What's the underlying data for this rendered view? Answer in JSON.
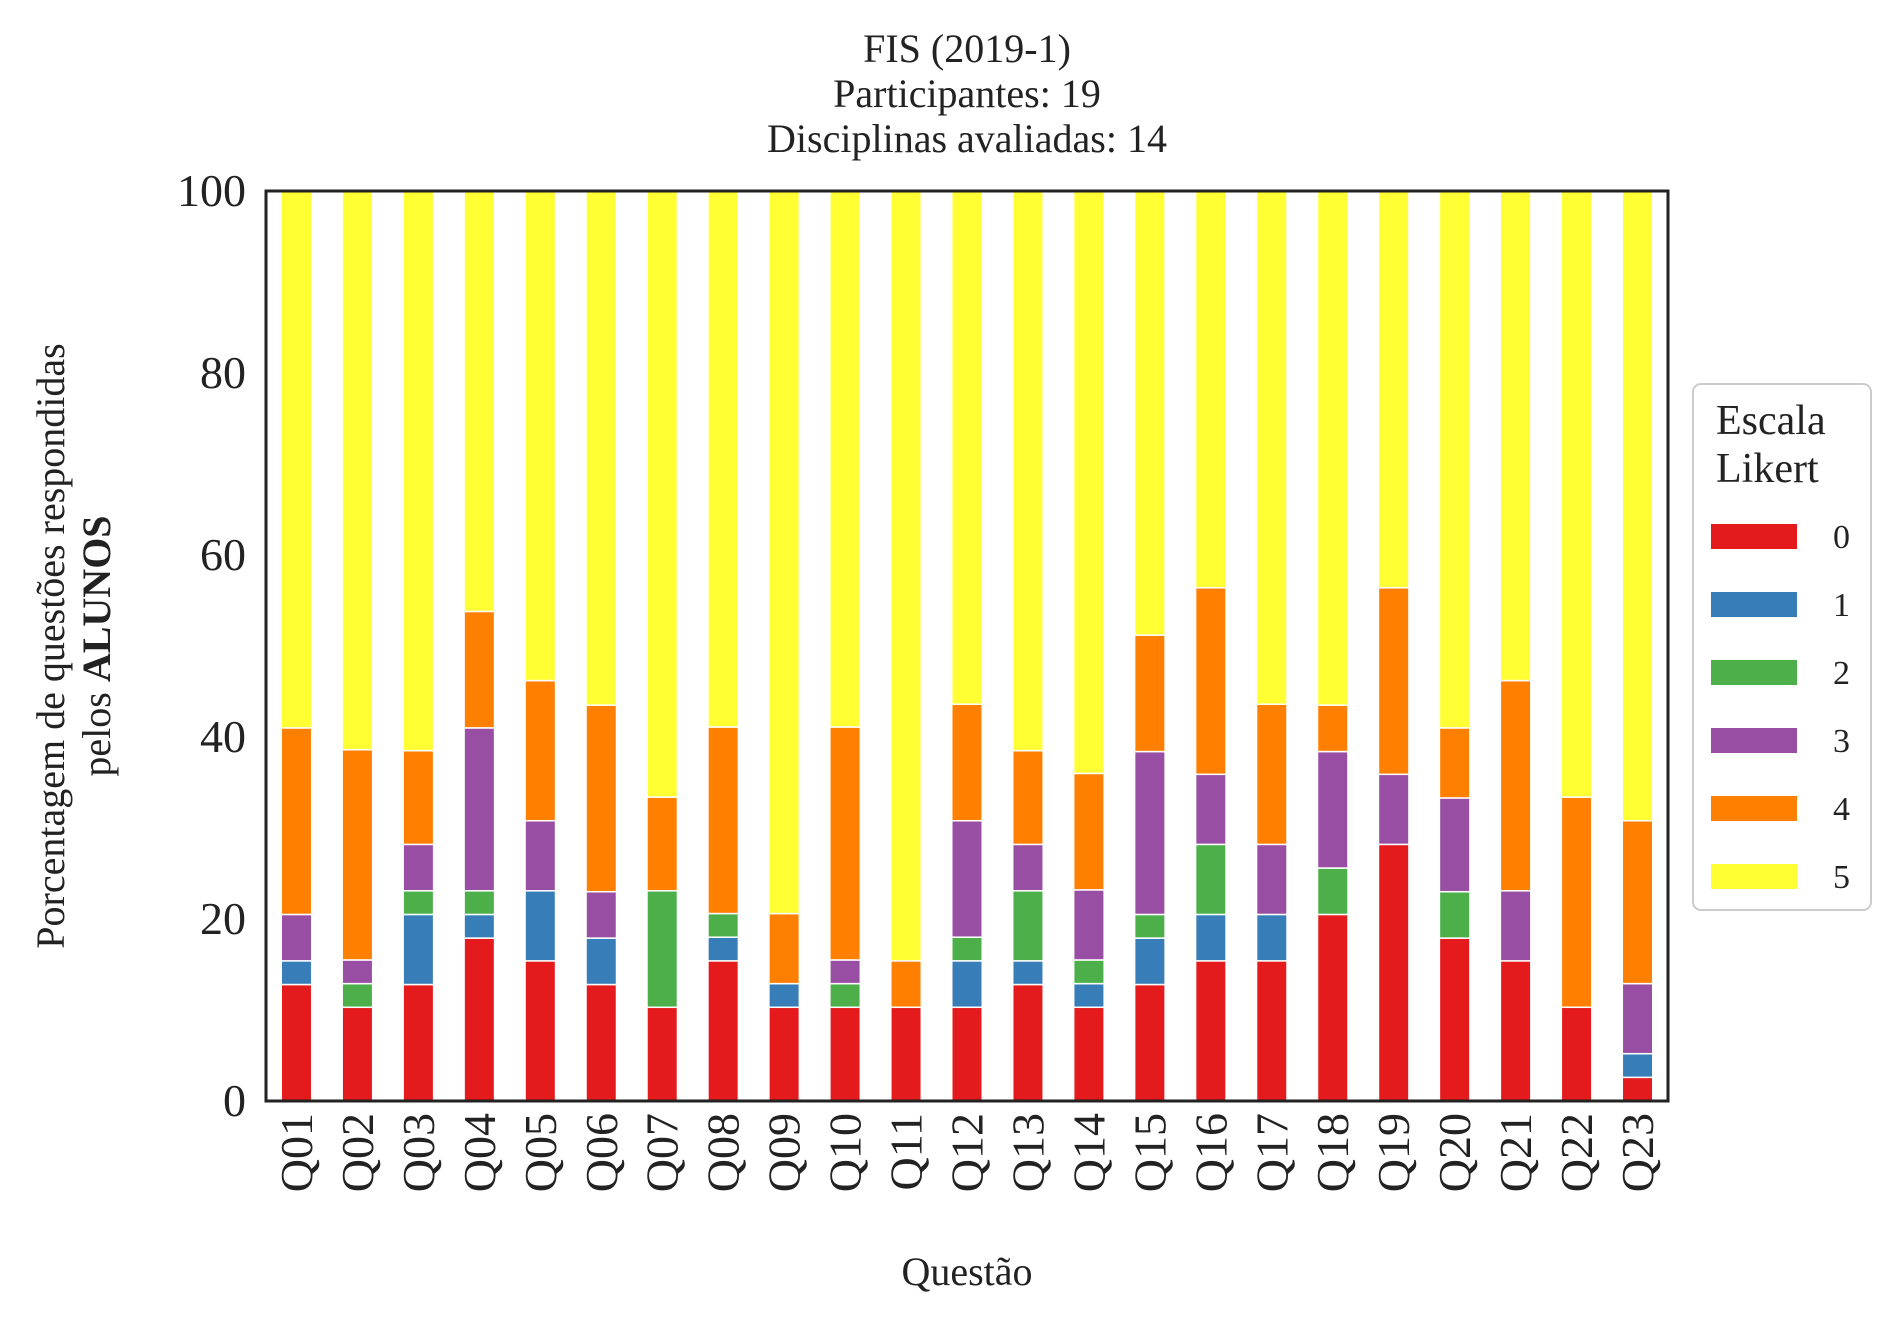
{
  "chart_data": {
    "type": "bar",
    "stacked": true,
    "title_lines": [
      "FIS (2019-1)",
      "Participantes: 19",
      "Disciplinas avaliadas: 14"
    ],
    "xlabel": "Questão",
    "ylabel_line1": "Porcentagem de questões respondidas",
    "ylabel_line2_prefix": "pelos ",
    "ylabel_line2_bold": "ALUNOS",
    "ylim": [
      0,
      100
    ],
    "yticks": [
      0,
      20,
      40,
      60,
      80,
      100
    ],
    "categories": [
      "Q01",
      "Q02",
      "Q03",
      "Q04",
      "Q05",
      "Q06",
      "Q07",
      "Q08",
      "Q09",
      "Q10",
      "Q11",
      "Q12",
      "Q13",
      "Q14",
      "Q15",
      "Q16",
      "Q17",
      "Q18",
      "Q19",
      "Q20",
      "Q21",
      "Q22",
      "Q23"
    ],
    "legend": {
      "title_lines": [
        "Escala",
        "Likert"
      ],
      "placement": "right"
    },
    "series": [
      {
        "name": "0",
        "color": "#e41a1c",
        "values": [
          12.8,
          10.3,
          12.8,
          17.9,
          15.4,
          12.8,
          10.3,
          15.4,
          10.3,
          10.3,
          10.3,
          10.3,
          12.8,
          10.3,
          12.8,
          15.4,
          15.4,
          20.5,
          28.2,
          17.9,
          15.4,
          10.3,
          2.6
        ]
      },
      {
        "name": "1",
        "color": "#377eb8",
        "values": [
          2.6,
          0,
          7.7,
          2.6,
          7.7,
          5.1,
          0,
          2.6,
          2.6,
          0,
          0,
          5.1,
          2.6,
          2.6,
          5.1,
          5.1,
          5.1,
          0,
          0,
          0,
          0,
          0,
          2.6
        ]
      },
      {
        "name": "2",
        "color": "#4daf4a",
        "values": [
          0,
          2.6,
          2.6,
          2.6,
          0,
          0,
          12.8,
          2.6,
          0,
          2.6,
          0,
          2.6,
          7.7,
          2.6,
          2.6,
          7.7,
          0,
          5.1,
          0,
          5.1,
          0,
          0,
          0
        ]
      },
      {
        "name": "3",
        "color": "#984ea3",
        "values": [
          5.1,
          2.6,
          5.1,
          17.9,
          7.7,
          5.1,
          0,
          0,
          0,
          2.6,
          0,
          12.8,
          5.1,
          7.7,
          17.9,
          7.7,
          7.7,
          12.8,
          7.7,
          10.3,
          7.7,
          0,
          7.7
        ]
      },
      {
        "name": "4",
        "color": "#ff7f00",
        "values": [
          20.5,
          23.1,
          10.3,
          12.8,
          15.4,
          20.5,
          10.3,
          20.5,
          7.7,
          25.6,
          5.1,
          12.8,
          10.3,
          12.8,
          12.8,
          20.5,
          15.4,
          5.1,
          20.5,
          7.7,
          23.1,
          23.1,
          17.9
        ]
      },
      {
        "name": "5",
        "color": "#ffff33",
        "values": [
          59.0,
          61.4,
          61.5,
          46.2,
          53.8,
          56.5,
          66.6,
          58.9,
          79.4,
          58.9,
          84.6,
          56.4,
          61.5,
          64.0,
          48.8,
          43.6,
          56.4,
          56.5,
          43.6,
          59.0,
          53.8,
          66.6,
          69.2
        ]
      }
    ]
  }
}
